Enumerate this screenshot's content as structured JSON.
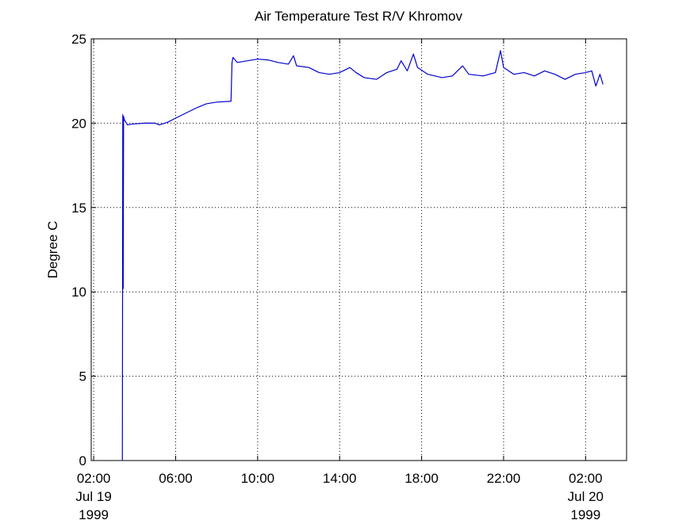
{
  "chart_data": {
    "type": "line",
    "title": "Air Temperature Test R/V Khromov",
    "y_label": "Degree C",
    "color": "#0000cc",
    "grid": true,
    "xlim": [
      1.88,
      28.0
    ],
    "ylim": [
      0,
      25
    ],
    "yticks": [
      0,
      5,
      10,
      15,
      20,
      25
    ],
    "xticks": [
      {
        "value": 2,
        "label": [
          "02:00",
          "Jul 19",
          "1999"
        ]
      },
      {
        "value": 6,
        "label": [
          "06:00"
        ]
      },
      {
        "value": 10,
        "label": [
          "10:00"
        ]
      },
      {
        "value": 14,
        "label": [
          "14:00"
        ]
      },
      {
        "value": 18,
        "label": [
          "18:00"
        ]
      },
      {
        "value": 22,
        "label": [
          "22:00"
        ]
      },
      {
        "value": 26,
        "label": [
          "02:00",
          "Jul 20",
          "1999"
        ]
      }
    ],
    "x": [
      3.4,
      3.42,
      3.44,
      3.46,
      3.5,
      3.65,
      3.9,
      4.5,
      5.0,
      5.2,
      5.6,
      6.0,
      6.5,
      7.0,
      7.5,
      8.0,
      8.7,
      8.75,
      8.8,
      9.0,
      9.5,
      10.0,
      10.5,
      11.0,
      11.5,
      11.75,
      11.9,
      12.5,
      13.0,
      13.5,
      14.0,
      14.5,
      14.8,
      15.2,
      15.8,
      16.3,
      16.8,
      17.0,
      17.3,
      17.6,
      17.8,
      18.3,
      19.0,
      19.5,
      20.0,
      20.3,
      21.0,
      21.6,
      21.85,
      22.0,
      22.5,
      23.0,
      23.5,
      24.0,
      24.5,
      25.0,
      25.5,
      26.0,
      26.3,
      26.5,
      26.7,
      26.85
    ],
    "values": [
      0,
      20.5,
      10.2,
      20.4,
      20.2,
      19.9,
      19.95,
      20.0,
      20.0,
      19.9,
      20.05,
      20.3,
      20.6,
      20.9,
      21.15,
      21.25,
      21.3,
      23.6,
      23.9,
      23.6,
      23.7,
      23.8,
      23.75,
      23.6,
      23.5,
      24.0,
      23.4,
      23.3,
      23.0,
      22.9,
      23.0,
      23.3,
      23.0,
      22.7,
      22.6,
      23.0,
      23.2,
      23.7,
      23.1,
      24.1,
      23.3,
      22.9,
      22.7,
      22.8,
      23.4,
      22.9,
      22.8,
      23.0,
      24.3,
      23.3,
      22.9,
      23.0,
      22.8,
      23.1,
      22.9,
      22.6,
      22.9,
      23.0,
      23.1,
      22.2,
      22.9,
      22.3
    ]
  }
}
